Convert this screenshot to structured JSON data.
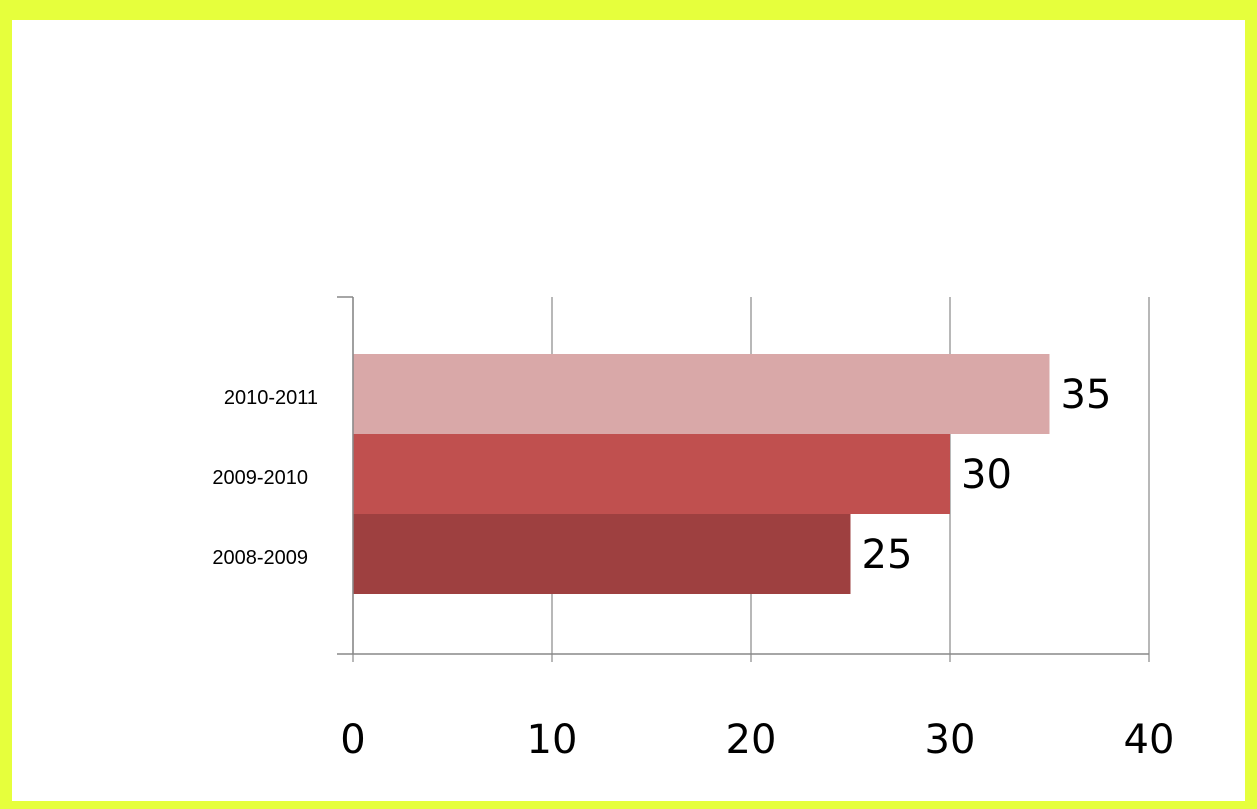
{
  "chart_data": {
    "type": "bar",
    "orientation": "horizontal",
    "categories": [
      "2008-2009",
      "2009-2010",
      "2010-2011"
    ],
    "values": [
      25,
      30,
      35
    ],
    "colors": [
      "#9e4040",
      "#c0504f",
      "#d9a8a8"
    ],
    "xticks": [
      "0",
      "10",
      "20",
      "30",
      "40"
    ],
    "xlim": [
      0,
      40
    ],
    "data_labels": [
      "25",
      "30",
      "35"
    ],
    "grid": "vertical",
    "legend": "none"
  },
  "frame": {
    "border_color": "#e6ff3c",
    "gridline_color": "#888888"
  }
}
